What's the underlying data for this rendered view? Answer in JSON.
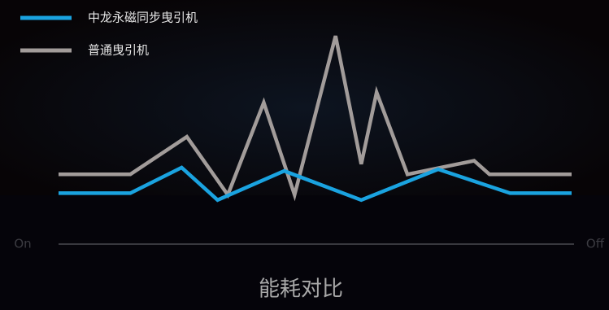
{
  "chart_data": {
    "type": "line",
    "title": "能耗对比",
    "x_axis_labels": [
      "On",
      "Off"
    ],
    "xlim": [
      0,
      100
    ],
    "ylim": [
      0,
      100
    ],
    "series": [
      {
        "name": "中龙永磁同步曳引机",
        "color": "#1aa3e0",
        "x": [
          0,
          14,
          24,
          31,
          44,
          59,
          74,
          88,
          100
        ],
        "values": [
          6,
          6,
          21,
          2,
          19,
          2,
          20,
          6,
          6
        ]
      },
      {
        "name": "普通曳引机",
        "color": "#a29c9a",
        "x": [
          0,
          14,
          25,
          33,
          40,
          46,
          54,
          59,
          62,
          68,
          81,
          84,
          100
        ],
        "values": [
          17,
          17,
          39,
          5,
          59,
          5,
          98,
          23,
          65,
          17,
          25,
          17,
          17
        ]
      }
    ]
  }
}
